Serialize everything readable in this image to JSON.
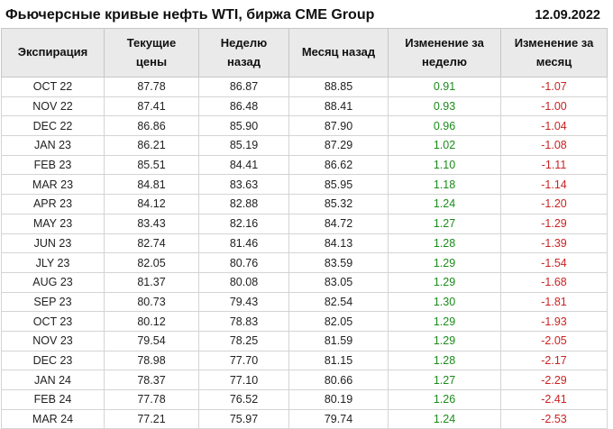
{
  "page": {
    "title": "Фьючерсные кривые нефть WTI, биржа CME Group",
    "date": "12.09.2022"
  },
  "table": {
    "column_keys": [
      "expiration",
      "current-price",
      "week-ago",
      "month-ago",
      "week-change",
      "month-change"
    ],
    "change_column_indexes": [
      4,
      5
    ]
  },
  "colors": {
    "positive": "#1a8c1a",
    "negative": "#cb2222",
    "header_bg": "#eaeaea",
    "grid_line": "#d4d4d4",
    "text": "#212121"
  },
  "chart_data": {
    "type": "table",
    "title": "Фьючерсные кривые нефть WTI, биржа CME Group",
    "date": "12.09.2022",
    "columns": [
      "Экспирация",
      "Текущие цены",
      "Неделю назад",
      "Месяц назад",
      "Изменение за неделю",
      "Изменение за месяц"
    ],
    "rows": [
      [
        "OCT 22",
        "87.78",
        "86.87",
        "88.85",
        "0.91",
        "-1.07"
      ],
      [
        "NOV 22",
        "87.41",
        "86.48",
        "88.41",
        "0.93",
        "-1.00"
      ],
      [
        "DEC 22",
        "86.86",
        "85.90",
        "87.90",
        "0.96",
        "-1.04"
      ],
      [
        "JAN 23",
        "86.21",
        "85.19",
        "87.29",
        "1.02",
        "-1.08"
      ],
      [
        "FEB 23",
        "85.51",
        "84.41",
        "86.62",
        "1.10",
        "-1.11"
      ],
      [
        "MAR 23",
        "84.81",
        "83.63",
        "85.95",
        "1.18",
        "-1.14"
      ],
      [
        "APR 23",
        "84.12",
        "82.88",
        "85.32",
        "1.24",
        "-1.20"
      ],
      [
        "MAY 23",
        "83.43",
        "82.16",
        "84.72",
        "1.27",
        "-1.29"
      ],
      [
        "JUN 23",
        "82.74",
        "81.46",
        "84.13",
        "1.28",
        "-1.39"
      ],
      [
        "JLY 23",
        "82.05",
        "80.76",
        "83.59",
        "1.29",
        "-1.54"
      ],
      [
        "AUG 23",
        "81.37",
        "80.08",
        "83.05",
        "1.29",
        "-1.68"
      ],
      [
        "SEP 23",
        "80.73",
        "79.43",
        "82.54",
        "1.30",
        "-1.81"
      ],
      [
        "OCT 23",
        "80.12",
        "78.83",
        "82.05",
        "1.29",
        "-1.93"
      ],
      [
        "NOV 23",
        "79.54",
        "78.25",
        "81.59",
        "1.29",
        "-2.05"
      ],
      [
        "DEC 23",
        "78.98",
        "77.70",
        "81.15",
        "1.28",
        "-2.17"
      ],
      [
        "JAN 24",
        "78.37",
        "77.10",
        "80.66",
        "1.27",
        "-2.29"
      ],
      [
        "FEB 24",
        "77.78",
        "76.52",
        "80.19",
        "1.26",
        "-2.41"
      ],
      [
        "MAR 24",
        "77.21",
        "75.97",
        "79.74",
        "1.24",
        "-2.53"
      ]
    ]
  }
}
